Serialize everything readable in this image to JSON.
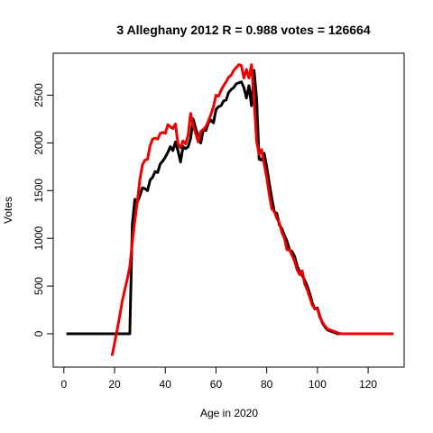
{
  "chart_data": {
    "type": "line",
    "title": "3 Alleghany 2012 R = 0.988 votes = 126664",
    "xlabel": "Age in 2020",
    "ylabel": "Votes",
    "xlim": [
      -4.2,
      134.2
    ],
    "ylim": [
      -350,
      2940
    ],
    "xticks": [
      0,
      20,
      40,
      60,
      80,
      100,
      120
    ],
    "yticks": [
      0,
      500,
      1000,
      1500,
      2000,
      2500
    ],
    "grid": false,
    "colors": {
      "black_series": "#000000",
      "red_series": "#ee0000"
    },
    "series": [
      {
        "color": "black",
        "x": [
          1,
          26,
          27,
          28,
          29,
          30,
          31,
          32,
          33,
          34,
          35,
          36,
          37,
          38,
          39,
          40,
          41,
          42,
          43,
          44,
          45,
          46,
          47,
          48,
          49,
          50,
          51,
          52,
          53,
          54,
          55,
          56,
          57,
          58,
          59,
          60,
          61,
          62,
          63,
          64,
          65,
          66,
          67,
          68,
          69,
          70,
          71,
          72,
          73,
          74,
          75,
          76,
          77,
          78,
          79,
          80,
          81,
          82,
          83,
          84,
          85,
          86,
          87,
          88,
          89,
          90,
          91,
          92,
          93,
          94,
          95,
          96,
          97,
          98,
          99,
          100,
          101,
          102,
          103,
          104,
          105,
          106,
          107,
          108,
          109,
          110,
          111,
          130
        ],
        "values": [
          0,
          0,
          1150,
          1410,
          1380,
          1450,
          1530,
          1520,
          1500,
          1610,
          1640,
          1700,
          1690,
          1780,
          1810,
          1850,
          1900,
          1960,
          1920,
          2010,
          1920,
          1800,
          1960,
          1940,
          1960,
          2050,
          2250,
          2150,
          2070,
          2000,
          2140,
          2130,
          2210,
          2240,
          2210,
          2350,
          2380,
          2390,
          2440,
          2450,
          2530,
          2560,
          2580,
          2620,
          2630,
          2640,
          2580,
          2470,
          2600,
          2390,
          2760,
          2470,
          1830,
          1820,
          1890,
          1750,
          1580,
          1420,
          1280,
          1260,
          1140,
          1100,
          1030,
          970,
          880,
          860,
          810,
          710,
          650,
          610,
          560,
          500,
          420,
          320,
          260,
          270,
          180,
          110,
          70,
          40,
          30,
          20,
          10,
          0,
          0,
          0,
          0,
          0
        ]
      },
      {
        "color": "red",
        "x": [
          19,
          20,
          21,
          22,
          23,
          24,
          25,
          26,
          27,
          28,
          29,
          30,
          31,
          32,
          33,
          34,
          35,
          36,
          37,
          38,
          39,
          40,
          41,
          42,
          43,
          44,
          45,
          46,
          47,
          48,
          49,
          50,
          51,
          52,
          53,
          54,
          55,
          56,
          57,
          58,
          59,
          60,
          61,
          62,
          63,
          64,
          65,
          66,
          67,
          68,
          69,
          70,
          71,
          72,
          73,
          74,
          75,
          76,
          77,
          78,
          79,
          80,
          81,
          82,
          83,
          84,
          85,
          86,
          87,
          88,
          89,
          90,
          91,
          92,
          93,
          94,
          95,
          96,
          97,
          98,
          99,
          100,
          101,
          102,
          103,
          104,
          105,
          106,
          107,
          108,
          109,
          110,
          111,
          130
        ],
        "values": [
          -230,
          -100,
          40,
          180,
          340,
          460,
          570,
          700,
          960,
          1190,
          1390,
          1620,
          1770,
          1820,
          1830,
          1970,
          2040,
          2050,
          2040,
          2100,
          2110,
          2100,
          2190,
          2170,
          2150,
          2200,
          1990,
          1950,
          2020,
          1990,
          2080,
          2310,
          2180,
          2100,
          2010,
          2120,
          2140,
          2170,
          2230,
          2300,
          2380,
          2500,
          2490,
          2550,
          2600,
          2640,
          2690,
          2710,
          2760,
          2790,
          2820,
          2810,
          2680,
          2770,
          2680,
          2820,
          2460,
          2020,
          1880,
          1930,
          1780,
          1640,
          1460,
          1310,
          1280,
          1210,
          1160,
          1060,
          1000,
          880,
          880,
          820,
          760,
          670,
          620,
          660,
          520,
          460,
          380,
          300,
          260,
          260,
          170,
          120,
          80,
          50,
          40,
          30,
          20,
          10,
          0,
          0,
          0,
          0
        ]
      }
    ]
  }
}
